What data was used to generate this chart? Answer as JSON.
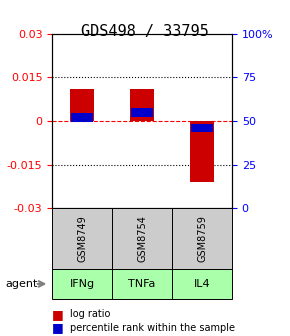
{
  "title": "GDS498 / 33795",
  "samples": [
    "GSM8749",
    "GSM8754",
    "GSM8759"
  ],
  "agents": [
    "IFNg",
    "TNFa",
    "IL4"
  ],
  "log_ratios": [
    0.011,
    0.011,
    -0.021
  ],
  "percentile_ranks": [
    0.52,
    0.55,
    0.46
  ],
  "bar_width": 0.4,
  "ylim_left": [
    -0.03,
    0.03
  ],
  "ylim_right": [
    0,
    100
  ],
  "yticks_left": [
    -0.03,
    -0.015,
    0,
    0.015,
    0.03
  ],
  "yticks_right": [
    0,
    25,
    50,
    75,
    100
  ],
  "ytick_labels_left": [
    "-0.03",
    "-0.015",
    "0",
    "0.015",
    "0.03"
  ],
  "ytick_labels_right": [
    "0",
    "25",
    "50",
    "75",
    "100%"
  ],
  "hlines": [
    -0.015,
    0,
    0.015
  ],
  "hline_styles": [
    "dotted",
    "dashed",
    "dotted"
  ],
  "hline_colors": [
    "black",
    "red",
    "black"
  ],
  "log_ratio_color": "#cc0000",
  "percentile_color": "#0000cc",
  "agent_colors": [
    "#aaffaa",
    "#aaffaa",
    "#aaffaa"
  ],
  "sample_bg_color": "#cccccc",
  "agent_bg_color": "#aaffaa",
  "legend_lr_label": "log ratio",
  "legend_pr_label": "percentile rank within the sample",
  "title_fontsize": 11,
  "axis_label_fontsize": 8,
  "tick_fontsize": 8
}
